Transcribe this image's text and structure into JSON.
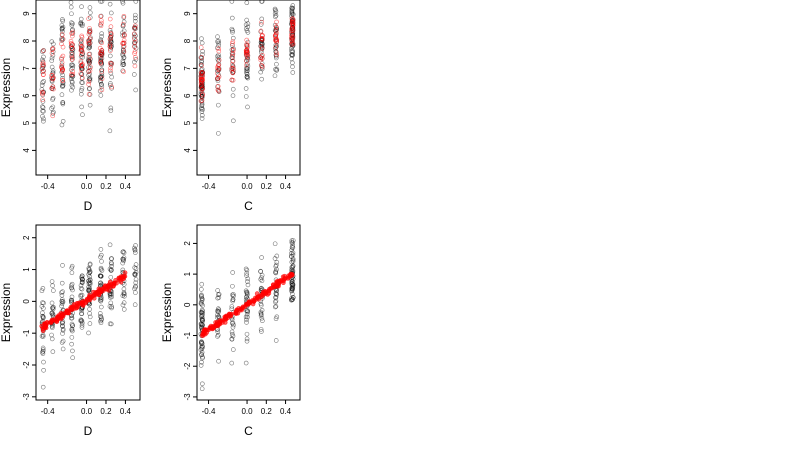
{
  "chart_data": [
    {
      "type": "scatter",
      "panel": "top-left",
      "xlabel": "D",
      "ylabel": "Expression",
      "xlim": [
        -0.52,
        0.55
      ],
      "ylim": [
        3.1,
        9.5
      ],
      "xticks": [
        -0.4,
        0.0,
        0.2,
        0.4
      ],
      "xtick_labels": [
        "-0.4",
        "0.0",
        "0.2",
        "0.4"
      ],
      "yticks": [
        4,
        5,
        6,
        7,
        8,
        9
      ],
      "ytick_labels": [
        "4",
        "5",
        "6",
        "7",
        "8",
        "9"
      ],
      "x_groups": [
        -0.45,
        -0.35,
        -0.25,
        -0.15,
        -0.05,
        0.03,
        0.15,
        0.25,
        0.38,
        0.5
      ],
      "series": [
        {
          "color": "#000000",
          "style": "hollow",
          "groups": [
            {
              "x": -0.45,
              "n": 25,
              "mean": 6.5,
              "sd": 0.9
            },
            {
              "x": -0.35,
              "n": 25,
              "mean": 7.0,
              "sd": 0.9
            },
            {
              "x": -0.25,
              "n": 30,
              "mean": 7.1,
              "sd": 0.9
            },
            {
              "x": -0.15,
              "n": 35,
              "mean": 7.5,
              "sd": 0.9
            },
            {
              "x": -0.05,
              "n": 35,
              "mean": 7.3,
              "sd": 0.9
            },
            {
              "x": 0.03,
              "n": 40,
              "mean": 7.5,
              "sd": 0.8
            },
            {
              "x": 0.15,
              "n": 40,
              "mean": 7.4,
              "sd": 0.8
            },
            {
              "x": 0.25,
              "n": 30,
              "mean": 7.5,
              "sd": 0.8
            },
            {
              "x": 0.38,
              "n": 25,
              "mean": 7.8,
              "sd": 0.7
            },
            {
              "x": 0.5,
              "n": 20,
              "mean": 7.9,
              "sd": 0.7
            }
          ]
        },
        {
          "color": "#ff0000",
          "style": "hollow",
          "groups": [
            {
              "x": -0.45,
              "n": 12,
              "mean": 6.6,
              "sd": 0.6
            },
            {
              "x": -0.35,
              "n": 12,
              "mean": 7.0,
              "sd": 0.6
            },
            {
              "x": -0.25,
              "n": 15,
              "mean": 7.2,
              "sd": 0.6
            },
            {
              "x": -0.15,
              "n": 15,
              "mean": 7.4,
              "sd": 0.6
            },
            {
              "x": -0.05,
              "n": 18,
              "mean": 7.4,
              "sd": 0.6
            },
            {
              "x": 0.03,
              "n": 18,
              "mean": 7.5,
              "sd": 0.6
            },
            {
              "x": 0.15,
              "n": 18,
              "mean": 7.5,
              "sd": 0.6
            },
            {
              "x": 0.25,
              "n": 15,
              "mean": 7.6,
              "sd": 0.5
            },
            {
              "x": 0.38,
              "n": 12,
              "mean": 7.8,
              "sd": 0.5
            },
            {
              "x": 0.5,
              "n": 10,
              "mean": 8.0,
              "sd": 0.5
            }
          ]
        }
      ]
    },
    {
      "type": "scatter",
      "panel": "top-right",
      "xlabel": "C",
      "ylabel": "Expression",
      "xlim": [
        -0.52,
        0.55
      ],
      "ylim": [
        3.1,
        9.5
      ],
      "xticks": [
        -0.4,
        0.0,
        0.2,
        0.4
      ],
      "xtick_labels": [
        "-0.4",
        "0.0",
        "0.2",
        "0.4"
      ],
      "yticks": [
        4,
        5,
        6,
        7,
        8,
        9
      ],
      "ytick_labels": [
        "4",
        "5",
        "6",
        "7",
        "8",
        "9"
      ],
      "series": [
        {
          "color": "#000000",
          "style": "hollow",
          "groups": [
            {
              "x": -0.47,
              "n": 60,
              "mean": 6.4,
              "sd": 0.8
            },
            {
              "x": -0.3,
              "n": 25,
              "mean": 6.9,
              "sd": 0.8
            },
            {
              "x": -0.15,
              "n": 25,
              "mean": 7.2,
              "sd": 0.8
            },
            {
              "x": 0.0,
              "n": 35,
              "mean": 7.5,
              "sd": 0.8
            },
            {
              "x": 0.15,
              "n": 30,
              "mean": 7.8,
              "sd": 0.7
            },
            {
              "x": 0.3,
              "n": 30,
              "mean": 8.0,
              "sd": 0.7
            },
            {
              "x": 0.47,
              "n": 60,
              "mean": 8.3,
              "sd": 0.6
            }
          ]
        },
        {
          "color": "#ff0000",
          "style": "hollow",
          "groups": [
            {
              "x": -0.47,
              "n": 30,
              "mean": 6.5,
              "sd": 0.4
            },
            {
              "x": -0.3,
              "n": 15,
              "mean": 6.9,
              "sd": 0.35
            },
            {
              "x": -0.15,
              "n": 15,
              "mean": 7.2,
              "sd": 0.35
            },
            {
              "x": 0.0,
              "n": 18,
              "mean": 7.5,
              "sd": 0.35
            },
            {
              "x": 0.15,
              "n": 18,
              "mean": 7.8,
              "sd": 0.35
            },
            {
              "x": 0.3,
              "n": 18,
              "mean": 8.1,
              "sd": 0.35
            },
            {
              "x": 0.47,
              "n": 30,
              "mean": 8.4,
              "sd": 0.4
            }
          ]
        }
      ]
    },
    {
      "type": "scatter",
      "panel": "bottom-left",
      "xlabel": "D",
      "ylabel": "Expression",
      "xlim": [
        -0.52,
        0.55
      ],
      "ylim": [
        -3.1,
        2.4
      ],
      "xticks": [
        -0.4,
        0.0,
        0.2,
        0.4
      ],
      "xtick_labels": [
        "-0.4",
        "0.0",
        "0.2",
        "0.4"
      ],
      "yticks": [
        -3,
        -2,
        -1,
        0,
        1,
        2
      ],
      "ytick_labels": [
        "-3",
        "-2",
        "-1",
        "0",
        "1",
        "2"
      ],
      "trend_line": {
        "color": "#ff0000",
        "x": [
          -0.47,
          0.4
        ],
        "y": [
          -0.85,
          0.8
        ]
      },
      "series": [
        {
          "color": "#000000",
          "style": "hollow",
          "groups": [
            {
              "x": -0.45,
              "n": 30,
              "mean": -0.7,
              "sd": 0.7
            },
            {
              "x": -0.35,
              "n": 25,
              "mean": -0.5,
              "sd": 0.6
            },
            {
              "x": -0.25,
              "n": 30,
              "mean": -0.3,
              "sd": 0.6
            },
            {
              "x": -0.15,
              "n": 35,
              "mean": -0.2,
              "sd": 0.6
            },
            {
              "x": -0.05,
              "n": 35,
              "mean": 0.0,
              "sd": 0.6
            },
            {
              "x": 0.03,
              "n": 40,
              "mean": 0.1,
              "sd": 0.6
            },
            {
              "x": 0.15,
              "n": 40,
              "mean": 0.3,
              "sd": 0.6
            },
            {
              "x": 0.25,
              "n": 30,
              "mean": 0.5,
              "sd": 0.6
            },
            {
              "x": 0.38,
              "n": 25,
              "mean": 0.7,
              "sd": 0.6
            },
            {
              "x": 0.5,
              "n": 20,
              "mean": 0.8,
              "sd": 0.5
            }
          ]
        },
        {
          "color": "#ff0000",
          "style": "filled",
          "line": {
            "n": 150,
            "x": [
              -0.47,
              0.4
            ],
            "y": [
              -0.85,
              0.8
            ],
            "jitter": 0.05
          }
        }
      ]
    },
    {
      "type": "scatter",
      "panel": "bottom-right",
      "xlabel": "C",
      "ylabel": "Expression",
      "xlim": [
        -0.52,
        0.55
      ],
      "ylim": [
        -3.1,
        2.6
      ],
      "xticks": [
        -0.4,
        0.0,
        0.2,
        0.4
      ],
      "xtick_labels": [
        "-0.4",
        "0.0",
        "0.2",
        "0.4"
      ],
      "yticks": [
        -3,
        -2,
        -1,
        0,
        1,
        2
      ],
      "ytick_labels": [
        "-3",
        "-2",
        "-1",
        "0",
        "1",
        "2"
      ],
      "trend_line": {
        "color": "#ff0000",
        "x": [
          -0.47,
          0.48
        ],
        "y": [
          -0.95,
          1.0
        ]
      },
      "series": [
        {
          "color": "#000000",
          "style": "hollow",
          "groups": [
            {
              "x": -0.47,
              "n": 60,
              "mean": -0.9,
              "sd": 0.7
            },
            {
              "x": -0.3,
              "n": 25,
              "mean": -0.5,
              "sd": 0.6
            },
            {
              "x": -0.15,
              "n": 25,
              "mean": -0.2,
              "sd": 0.6
            },
            {
              "x": 0.0,
              "n": 35,
              "mean": 0.1,
              "sd": 0.6
            },
            {
              "x": 0.15,
              "n": 30,
              "mean": 0.4,
              "sd": 0.6
            },
            {
              "x": 0.3,
              "n": 30,
              "mean": 0.6,
              "sd": 0.6
            },
            {
              "x": 0.47,
              "n": 60,
              "mean": 0.9,
              "sd": 0.6
            }
          ]
        },
        {
          "color": "#ff0000",
          "style": "filled",
          "line": {
            "n": 150,
            "x": [
              -0.47,
              0.48
            ],
            "y": [
              -0.95,
              1.0
            ],
            "jitter": 0.05
          }
        }
      ]
    }
  ]
}
